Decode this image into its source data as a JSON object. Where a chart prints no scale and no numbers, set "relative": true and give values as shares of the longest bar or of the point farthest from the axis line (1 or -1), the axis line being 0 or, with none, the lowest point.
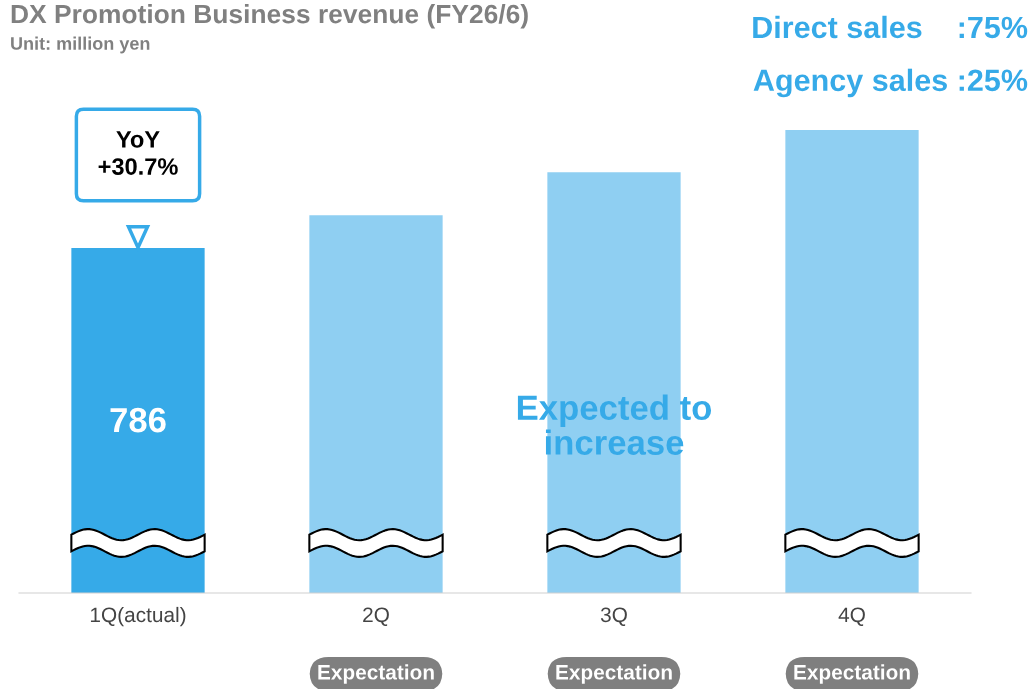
{
  "chart_data": {
    "type": "bar",
    "title": "DX Promotion Business revenue (FY26/6)",
    "subtitle": "Unit: million yen",
    "categories": [
      "1Q(actual)",
      "2Q",
      "3Q",
      "4Q"
    ],
    "values": [
      0.745,
      0.816,
      0.909,
      1.0
    ],
    "colors": [
      "#36aae8",
      "#8fcff2",
      "#8fcff2",
      "#8fcff2"
    ],
    "relative": true,
    "annotations": [
      "Direct sales    :75%",
      "Agency sales :25%",
      "786",
      "YoY\n+30.7%",
      "Expected to\nincrease",
      "Expectation",
      "Expectation",
      "Expectation"
    ],
    "grid": false,
    "legend": false
  }
}
